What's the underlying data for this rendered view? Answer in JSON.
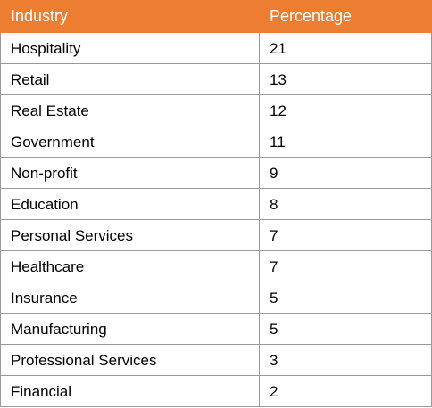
{
  "chart_data": {
    "type": "table",
    "columns": [
      "Industry",
      "Percentage"
    ],
    "rows": [
      {
        "industry": "Hospitality",
        "percentage": "21"
      },
      {
        "industry": "Retail",
        "percentage": "13"
      },
      {
        "industry": "Real Estate",
        "percentage": "12"
      },
      {
        "industry": "Government",
        "percentage": "11"
      },
      {
        "industry": "Non-profit",
        "percentage": "9"
      },
      {
        "industry": "Education",
        "percentage": "8"
      },
      {
        "industry": "Personal Services",
        "percentage": "7"
      },
      {
        "industry": "Healthcare",
        "percentage": "7"
      },
      {
        "industry": "Insurance",
        "percentage": "5"
      },
      {
        "industry": "Manufacturing",
        "percentage": "5"
      },
      {
        "industry": "Professional Services",
        "percentage": "3"
      },
      {
        "industry": "Financial",
        "percentage": "2"
      }
    ]
  },
  "colors": {
    "header_bg": "#ED7D31",
    "header_text": "#FFFFFF",
    "grid": "#9A9A9A"
  }
}
